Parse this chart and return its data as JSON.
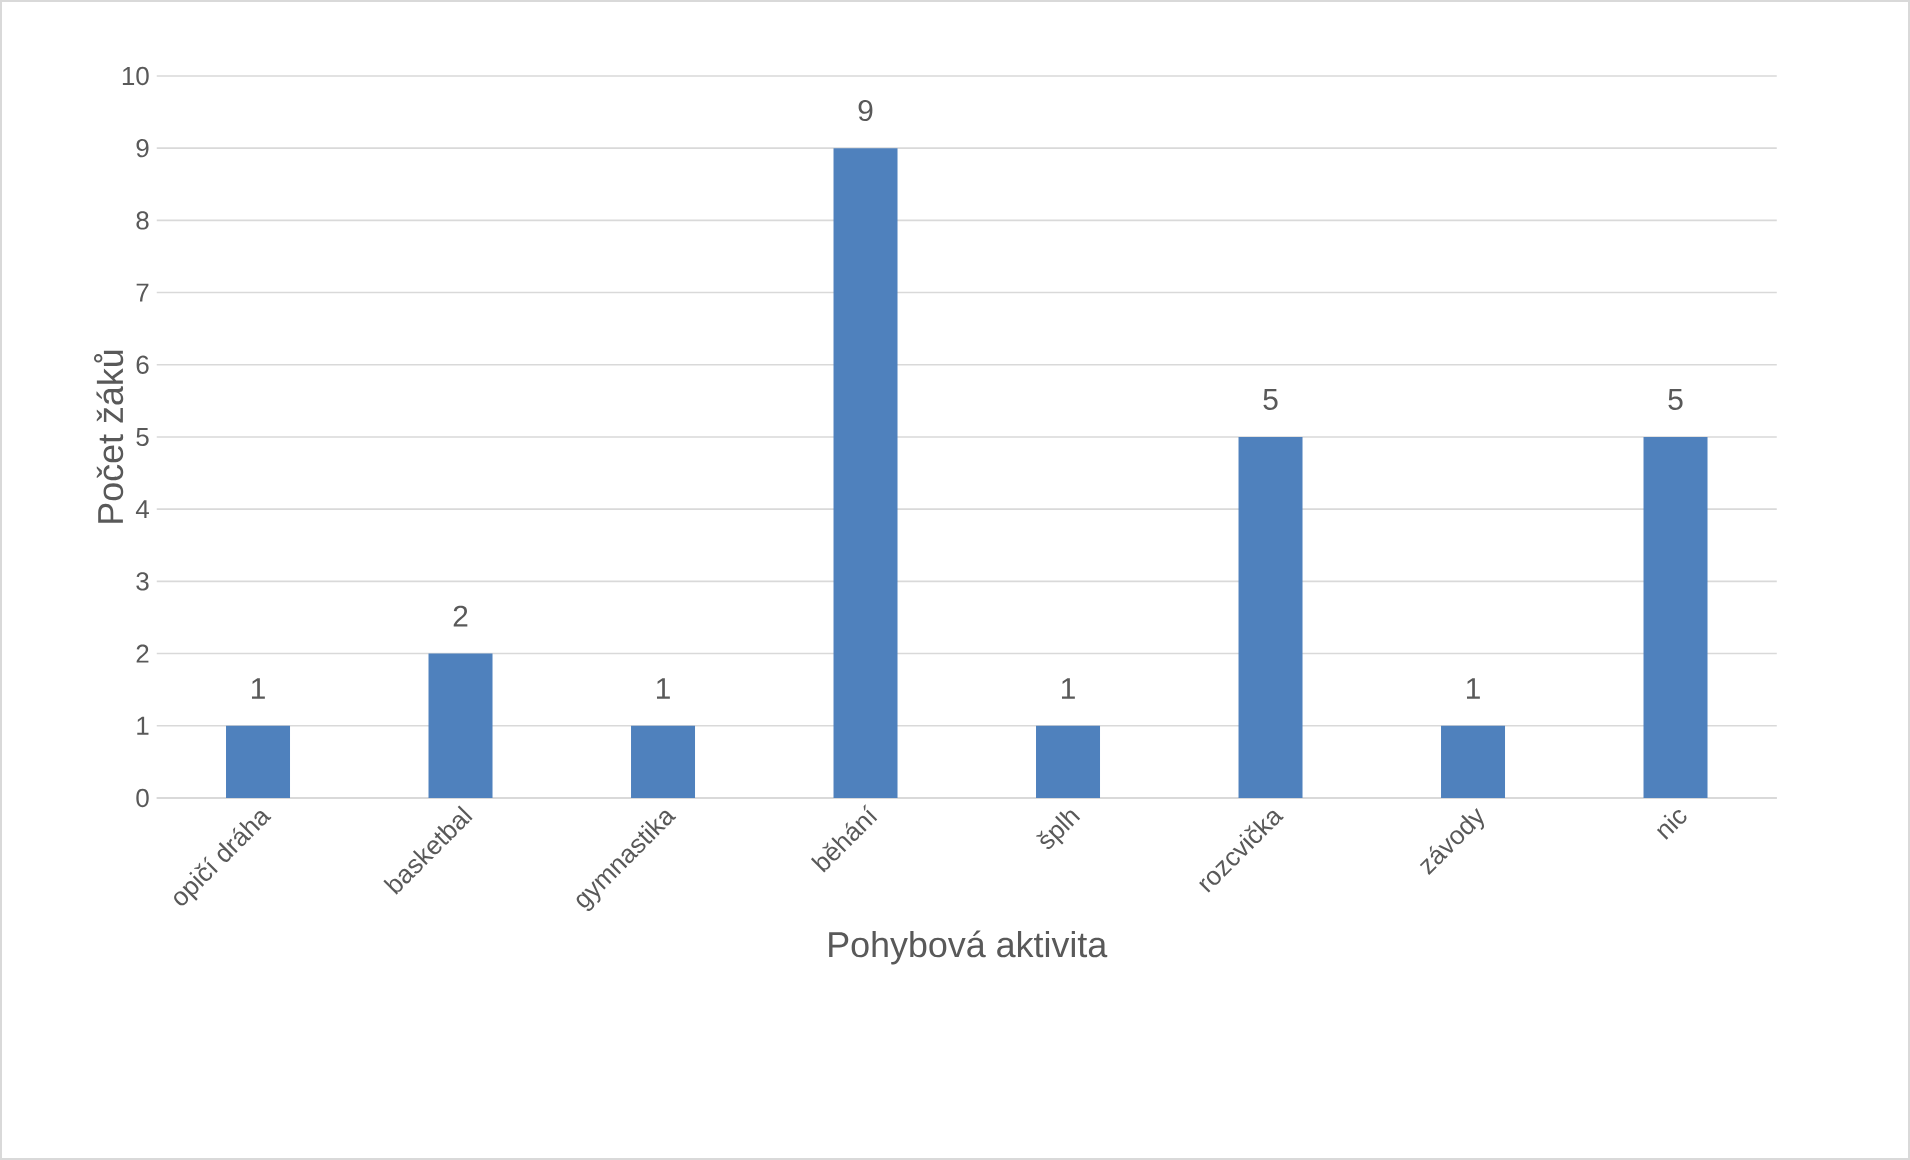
{
  "chart_data": {
    "type": "bar",
    "xlabel": "Pohybová aktivita",
    "ylabel": "Počet žáků",
    "categories": [
      "opičí dráha",
      "basketbal",
      "gymnastika",
      "běhání",
      "šplh",
      "rozcvička",
      "závody",
      "nic"
    ],
    "values": [
      1,
      2,
      1,
      9,
      1,
      5,
      1,
      5
    ],
    "color": "#4f81bd",
    "ylim": [
      0,
      10
    ],
    "yticks": [
      0,
      1,
      2,
      3,
      4,
      5,
      6,
      7,
      8,
      9,
      10
    ],
    "grid": "y",
    "data_labels": true
  }
}
